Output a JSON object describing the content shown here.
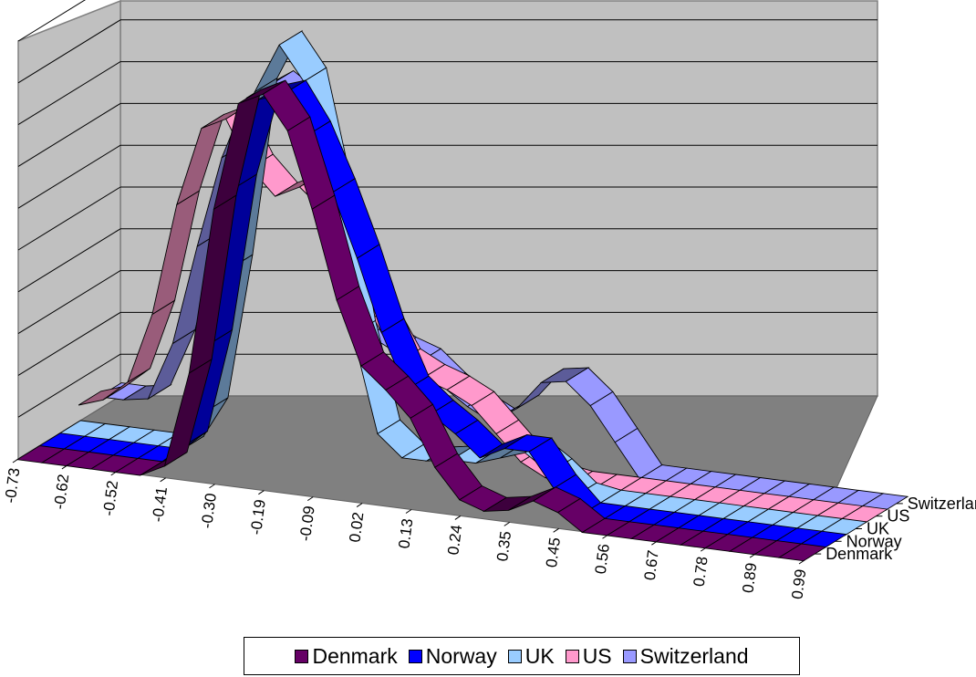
{
  "chart_data": {
    "type": "line",
    "subtype": "3d-ribbon",
    "title": "",
    "xlabel": "",
    "ylabel": "",
    "x_tick_labels": [
      "-0.73",
      "-0.62",
      "-0.52",
      "-0.41",
      "-0.30",
      "-0.19",
      "-0.09",
      "0.02",
      "0.13",
      "0.24",
      "0.35",
      "0.45",
      "0.56",
      "0.67",
      "0.78",
      "0.89",
      "0.99"
    ],
    "x": [
      -0.73,
      -0.68,
      -0.62,
      -0.57,
      -0.52,
      -0.46,
      -0.41,
      -0.35,
      -0.3,
      -0.24,
      -0.19,
      -0.14,
      -0.09,
      -0.03,
      0.02,
      0.08,
      0.13,
      0.19,
      0.24,
      0.3,
      0.35,
      0.4,
      0.45,
      0.51,
      0.56,
      0.62,
      0.67,
      0.73,
      0.78,
      0.84,
      0.89,
      0.94,
      0.99
    ],
    "ylim": [
      0,
      10
    ],
    "y_gridlines": 10,
    "grid": true,
    "legend_position": "bottom",
    "series": [
      {
        "name": "Denmark",
        "color": "#660066",
        "values": [
          0,
          0,
          0,
          0,
          0,
          0,
          0.3,
          2.6,
          6.6,
          9.2,
          9.5,
          8.7,
          6.9,
          4.8,
          3.3,
          2.8,
          2.2,
          1.1,
          0.4,
          0.2,
          0.3,
          0.6,
          0.4,
          0,
          0,
          0,
          0,
          0,
          0,
          0,
          0,
          0,
          0
        ]
      },
      {
        "name": "Norway",
        "color": "#0000ff",
        "values": [
          0,
          0,
          0,
          0,
          0,
          0,
          0.5,
          3.0,
          6.8,
          9.0,
          9.2,
          8.3,
          7.0,
          5.5,
          3.8,
          2.5,
          2.0,
          1.6,
          1.1,
          1.4,
          1.4,
          0.6,
          0,
          0,
          0,
          0,
          0,
          0,
          0,
          0,
          0,
          0,
          0
        ]
      },
      {
        "name": "UK",
        "color": "#99ccff",
        "values": [
          0,
          0,
          0,
          0,
          0,
          0,
          1.0,
          4.5,
          8.8,
          10.0,
          9.2,
          6.6,
          3.3,
          1.0,
          0.5,
          0.5,
          0.6,
          0.6,
          0.8,
          1.0,
          0.6,
          0.1,
          0,
          0,
          0,
          0,
          0,
          0,
          0,
          0,
          0,
          0,
          0
        ]
      },
      {
        "name": "US",
        "color": "#ff99cc",
        "values": [
          0.4,
          0.6,
          1.1,
          2.8,
          5.5,
          7.4,
          7.7,
          6.6,
          6.0,
          6.3,
          5.8,
          4.7,
          3.4,
          2.4,
          2.1,
          1.9,
          1.6,
          1.0,
          0.4,
          0.1,
          0,
          0,
          0,
          0,
          0,
          0,
          0,
          0,
          0,
          0,
          0,
          0,
          0
        ]
      },
      {
        "name": "Switzerland",
        "color": "#9999ff",
        "values": [
          0.3,
          0.3,
          0.4,
          1.8,
          4.2,
          6.4,
          7.9,
          8.3,
          7.9,
          6.6,
          4.2,
          2.6,
          2.3,
          2.1,
          1.6,
          1.2,
          0.9,
          1.3,
          2.0,
          2.1,
          1.6,
          0.8,
          0,
          0,
          0,
          0,
          0,
          0,
          0,
          0,
          0,
          0,
          0
        ]
      }
    ],
    "series_axis_labels": [
      "Denmark",
      "Norway",
      "UK",
      "US",
      "Switzerland"
    ]
  }
}
